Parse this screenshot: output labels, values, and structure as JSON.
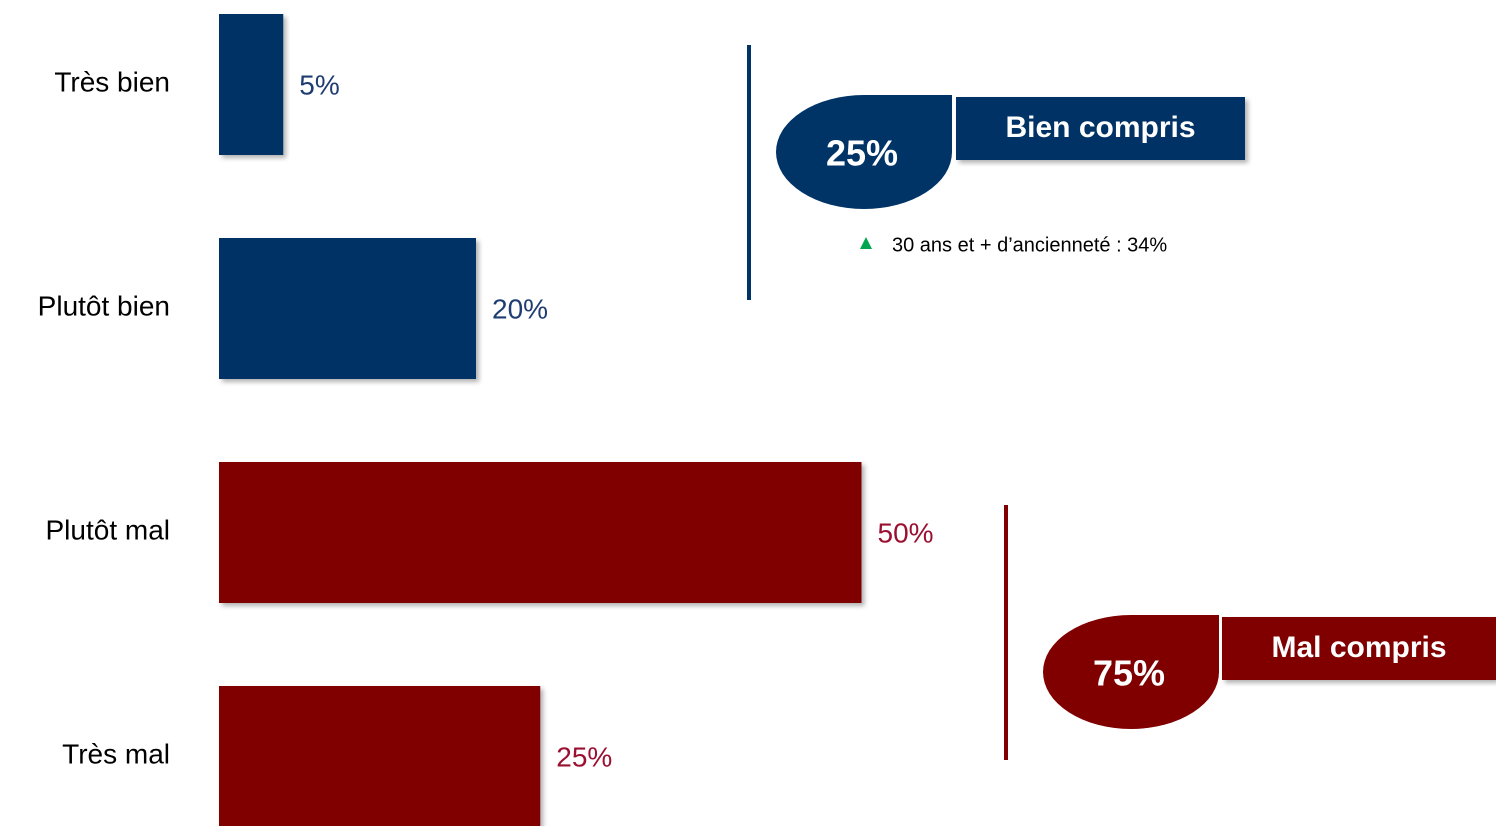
{
  "chart_data": {
    "type": "bar",
    "orientation": "horizontal",
    "categories": [
      "Très bien",
      "Plutôt bien",
      "Plutôt mal",
      "Très mal"
    ],
    "values": [
      5,
      20,
      50,
      25
    ],
    "value_labels": [
      "5%",
      "20%",
      "50%",
      "25%"
    ],
    "colors": [
      "#003366",
      "#003366",
      "#800000",
      "#800000"
    ],
    "label_colors": [
      "#1f3d73",
      "#1f3d73",
      "#9b1030",
      "#9b1030"
    ],
    "groups": [
      {
        "name": "Bien compris",
        "value": 25,
        "value_label": "25%",
        "color": "#003366",
        "note": "30 ans et + d’ancienneté : 34%",
        "note_color": "#00a651"
      },
      {
        "name": "Mal compris",
        "value": 75,
        "value_label": "75%",
        "color": "#800000"
      }
    ]
  }
}
